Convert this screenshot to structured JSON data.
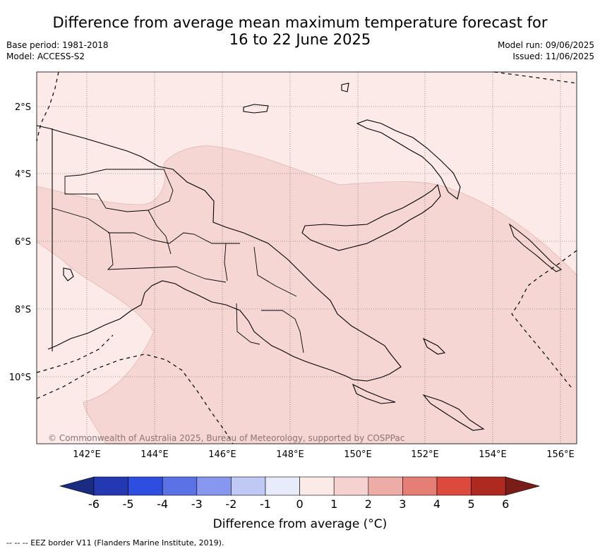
{
  "title": {
    "line1": "Difference from average mean maximum temperature forecast for",
    "line2": "16 to 22 June 2025"
  },
  "meta_left": {
    "base_period": "Base period: 1981-2018",
    "model": "Model: ACCESS-S2"
  },
  "meta_right": {
    "model_run": "Model run: 09/06/2025",
    "issued": "Issued: 11/06/2025"
  },
  "map": {
    "lon_range": [
      140.6,
      156.5
    ],
    "lat_range": [
      -12.0,
      -1.0
    ],
    "lon_ticks": [
      "142°E",
      "144°E",
      "146°E",
      "148°E",
      "150°E",
      "152°E",
      "154°E",
      "156°E"
    ],
    "lat_ticks": [
      "2°S",
      "4°S",
      "6°S",
      "8°S",
      "10°S"
    ],
    "copyright": "© Commonwealth of Australia 2025, Bureau of Meteorology, supported by COSPPac",
    "background_category": "0 to 1",
    "anomaly_region_category": "1 to 2"
  },
  "colorbar": {
    "ticks": [
      "-6",
      "-5",
      "-4",
      "-3",
      "-2",
      "-1",
      "0",
      "1",
      "2",
      "3",
      "4",
      "5",
      "6"
    ],
    "colors": [
      "#1a2c80",
      "#2438b4",
      "#2e4ee0",
      "#5a72e6",
      "#8597ee",
      "#c0c8f4",
      "#e8ecfa",
      "#fceae8",
      "#f5d1cf",
      "#eeaca6",
      "#e57e75",
      "#db4a3c",
      "#ae2a20",
      "#7a1c18"
    ],
    "label": "Difference from average (°C)"
  },
  "footer": "--  --  -- EEZ border V11 (Flanders Marine Institute, 2019)."
}
